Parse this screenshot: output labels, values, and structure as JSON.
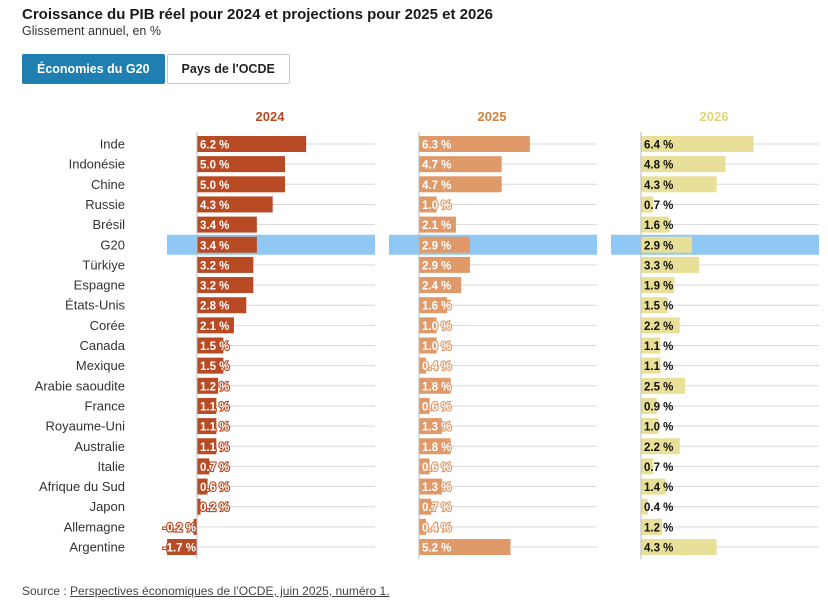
{
  "title": "Croissance du PIB réel pour 2024 et projections pour 2025 et 2026",
  "subtitle": "Glissement annuel, en %",
  "tabs": [
    {
      "label": "Économies du G20",
      "active": true
    },
    {
      "label": "Pays de l'OCDE",
      "active": false
    }
  ],
  "source": {
    "prefix": "Source : ",
    "link_text": "Perspectives économiques de l’OCDE, juin 2025, numéro 1."
  },
  "colors": {
    "2024": "#b84a24",
    "2025": "#e09a6a",
    "2026": "#e8df98",
    "highlight": "#90c8f5",
    "header_2024": "#b84a24",
    "header_2025": "#d0823f",
    "header_2026": "#e0d57a"
  },
  "chart_data": {
    "type": "bar",
    "orientation": "horizontal",
    "highlighted_category": "G20",
    "unit_suffix": " %",
    "categories": [
      "Inde",
      "Indonésie",
      "Chine",
      "Russie",
      "Brésil",
      "G20",
      "Türkiye",
      "Espagne",
      "États-Unis",
      "Corée",
      "Canada",
      "Mexique",
      "Arabie saoudite",
      "France",
      "Royaume-Uni",
      "Australie",
      "Italie",
      "Afrique du Sud",
      "Japon",
      "Allemagne",
      "Argentine"
    ],
    "series": [
      {
        "name": "2024",
        "values": [
          6.2,
          5.0,
          5.0,
          4.3,
          3.4,
          3.4,
          3.2,
          3.2,
          2.8,
          2.1,
          1.5,
          1.5,
          1.2,
          1.1,
          1.1,
          1.1,
          0.7,
          0.6,
          0.2,
          -0.2,
          -1.7
        ]
      },
      {
        "name": "2025",
        "values": [
          6.3,
          4.7,
          4.7,
          1.0,
          2.1,
          2.9,
          2.9,
          2.4,
          1.6,
          1.0,
          1.0,
          0.4,
          1.8,
          0.6,
          1.3,
          1.8,
          0.6,
          1.3,
          0.7,
          0.4,
          5.2
        ]
      },
      {
        "name": "2026",
        "values": [
          6.4,
          4.8,
          4.3,
          0.7,
          1.6,
          2.9,
          3.3,
          1.9,
          1.5,
          2.2,
          1.1,
          1.1,
          2.5,
          0.9,
          1.0,
          2.2,
          0.7,
          1.4,
          0.4,
          1.2,
          4.3
        ]
      }
    ]
  }
}
